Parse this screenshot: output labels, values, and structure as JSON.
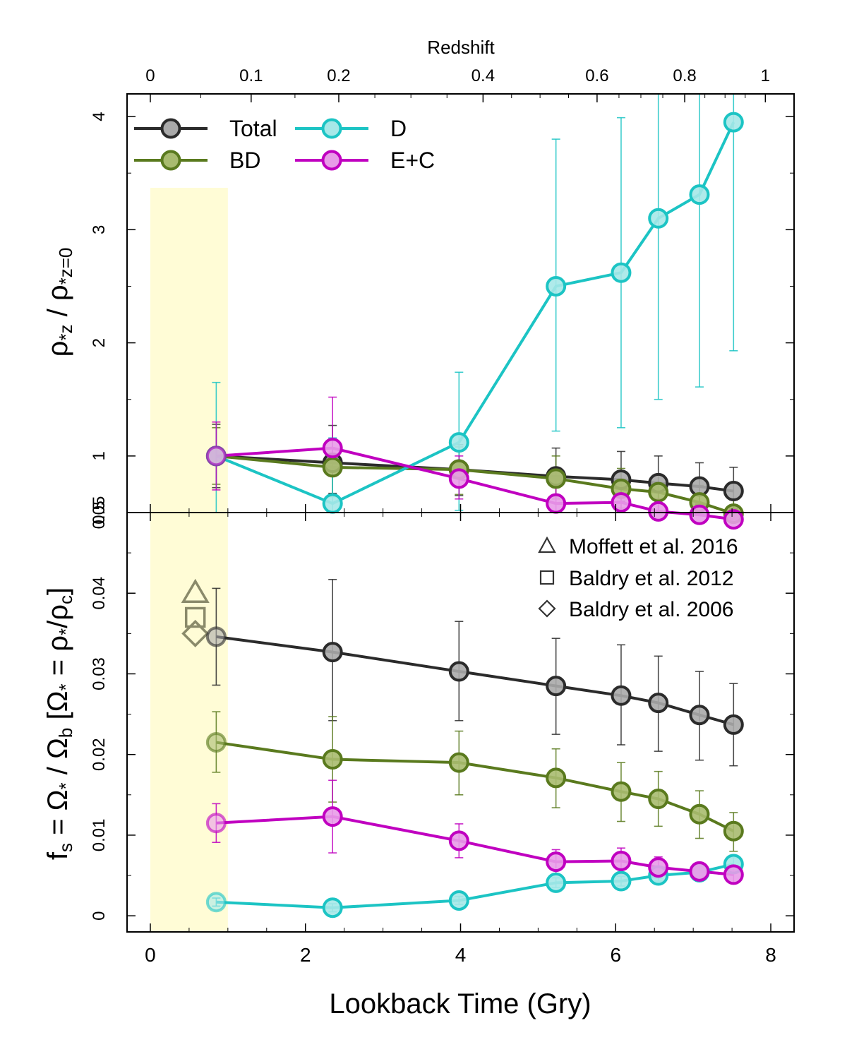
{
  "chart_data": [
    {
      "type": "line",
      "panel": "top",
      "x_axis_top": {
        "title": "Redshift",
        "ticks": [
          0,
          0.1,
          0.2,
          0.4,
          0.6,
          0.8,
          1
        ],
        "tick_labels": [
          "0",
          "0.1",
          "0.2",
          "0.4",
          "0.6",
          "0.8",
          "1"
        ],
        "tick_lookback_gyr": [
          0,
          1.3,
          2.43,
          4.29,
          5.76,
          6.89,
          7.93
        ]
      },
      "ylabel_parts": [
        "ρ",
        "*z",
        " / ρ",
        "*z=0"
      ],
      "ylim": [
        0.5,
        4.2
      ],
      "yticks": [
        0.5,
        1,
        2,
        3,
        4
      ],
      "ytick_labels": [
        "0.5",
        "1",
        "2",
        "3",
        "4"
      ],
      "legend": {
        "position": "top-left",
        "entries": [
          "Total",
          "BD",
          "D",
          "E+C"
        ]
      },
      "x": [
        0.85,
        2.35,
        3.98,
        5.23,
        6.07,
        6.55,
        7.08,
        7.52
      ],
      "series": [
        {
          "name": "Total",
          "color": "#2b2b2b",
          "fill": "#aaaaaa",
          "values": [
            1.0,
            0.94,
            0.88,
            0.82,
            0.79,
            0.76,
            0.73,
            0.69
          ],
          "err_lo": [
            0.28,
            0.27,
            0.23,
            0.18,
            0.19,
            0.18,
            0.16,
            0.15
          ],
          "err_hi": [
            0.28,
            0.33,
            0.22,
            0.25,
            0.25,
            0.24,
            0.21,
            0.21
          ]
        },
        {
          "name": "BD",
          "color": "#5a7a1e",
          "fill": "#a8bb6f",
          "values": [
            1.0,
            0.9,
            0.88,
            0.8,
            0.71,
            0.68,
            0.59,
            0.49
          ],
          "err_lo": [
            0.25,
            0.26,
            0.22,
            0.18,
            0.17,
            0.16,
            0.12,
            0.09
          ],
          "err_hi": [
            0.25,
            0.25,
            0.2,
            0.2,
            0.18,
            0.15,
            0.15,
            0.12
          ]
        },
        {
          "name": "D",
          "color": "#1cc4c4",
          "fill": "#a6e8e8",
          "values": [
            1.0,
            0.58,
            1.12,
            2.5,
            2.62,
            3.1,
            3.31,
            3.95
          ],
          "err_lo": [
            0.63,
            0.58,
            0.6,
            1.28,
            1.37,
            1.6,
            1.7,
            2.02
          ],
          "err_hi": [
            0.65,
            0.58,
            0.62,
            1.3,
            1.37,
            1.6,
            1.7,
            2.02
          ]
        },
        {
          "name": "E+C",
          "color": "#c000c0",
          "fill": "#e89ce8",
          "values": [
            1.0,
            1.07,
            0.8,
            0.58,
            0.59,
            0.51,
            0.48,
            0.44
          ],
          "err_lo": [
            0.3,
            0.25,
            0.18,
            0.13,
            0.14,
            0.12,
            0.1,
            0.09
          ],
          "err_hi": [
            0.3,
            0.45,
            0.2,
            0.14,
            0.14,
            0.11,
            0.1,
            0.09
          ]
        }
      ],
      "shaded_region_x": [
        0,
        1.0
      ]
    },
    {
      "type": "line",
      "panel": "bottom",
      "xlabel": "Lookback Time (Gry)",
      "xlim": [
        -0.3,
        8.3
      ],
      "xticks": [
        0,
        2,
        4,
        6,
        8
      ],
      "xtick_labels": [
        "0",
        "2",
        "4",
        "6",
        "8"
      ],
      "ylabel_parts": [
        "f",
        "s",
        " = Ω",
        "*",
        " / Ω",
        "b",
        " [Ω",
        "*",
        " = ρ",
        "*",
        "/ρ",
        "c",
        "]"
      ],
      "ylim": [
        -0.002,
        0.05
      ],
      "yticks": [
        0,
        0.01,
        0.02,
        0.03,
        0.04,
        0.05
      ],
      "ytick_labels": [
        "0",
        "0.01",
        "0.02",
        "0.03",
        "0.04",
        "0.05"
      ],
      "x": [
        0.85,
        2.35,
        3.98,
        5.23,
        6.07,
        6.55,
        7.08,
        7.52
      ],
      "series": [
        {
          "name": "Total",
          "color": "#2b2b2b",
          "fill": "#aaaaaa",
          "values": [
            0.0346,
            0.0327,
            0.0303,
            0.0285,
            0.0273,
            0.0264,
            0.0249,
            0.0237
          ],
          "err_lo": [
            0.006,
            0.0085,
            0.0061,
            0.006,
            0.0061,
            0.006,
            0.0056,
            0.0051
          ],
          "err_hi": [
            0.006,
            0.009,
            0.0062,
            0.0059,
            0.0063,
            0.0058,
            0.0054,
            0.0051
          ]
        },
        {
          "name": "BD",
          "color": "#5a7a1e",
          "fill": "#a8bb6f",
          "values": [
            0.0215,
            0.0194,
            0.019,
            0.0171,
            0.0154,
            0.0145,
            0.0126,
            0.0105
          ],
          "err_lo": [
            0.0037,
            0.0053,
            0.004,
            0.0037,
            0.0037,
            0.0034,
            0.003,
            0.0025
          ],
          "err_hi": [
            0.0038,
            0.0053,
            0.0039,
            0.0036,
            0.0036,
            0.0034,
            0.0029,
            0.0023
          ]
        },
        {
          "name": "D",
          "color": "#1cc4c4",
          "fill": "#a6e8e8",
          "values": [
            0.0017,
            0.001,
            0.0019,
            0.0041,
            0.0043,
            0.005,
            0.0054,
            0.0064
          ],
          "err_lo": [
            0.0005,
            0.0005,
            0.0005,
            0.0006,
            0.0006,
            0.0007,
            0.0007,
            0.0008
          ],
          "err_hi": [
            0.0005,
            0.0005,
            0.0005,
            0.0006,
            0.0006,
            0.0007,
            0.0007,
            0.0008
          ]
        },
        {
          "name": "E+C",
          "color": "#c000c0",
          "fill": "#e89ce8",
          "values": [
            0.0115,
            0.0123,
            0.0093,
            0.0067,
            0.0068,
            0.006,
            0.0055,
            0.0051
          ],
          "err_lo": [
            0.0024,
            0.0045,
            0.0021,
            0.0015,
            0.0016,
            0.0013,
            0.0011,
            0.001
          ],
          "err_hi": [
            0.0024,
            0.0045,
            0.0021,
            0.0015,
            0.0016,
            0.0013,
            0.0011,
            0.001
          ]
        }
      ],
      "reference_points": [
        {
          "label": "Moffett et al. 2016",
          "marker": "triangle",
          "x": 0.58,
          "y": 0.04
        },
        {
          "label": "Baldry et al. 2012",
          "marker": "square",
          "x": 0.58,
          "y": 0.037
        },
        {
          "label": "Baldry et al. 2006",
          "marker": "diamond",
          "x": 0.58,
          "y": 0.035
        }
      ],
      "reference_color": "#8a8a6a",
      "legend": {
        "position": "top-right"
      },
      "shaded_region_x": [
        0,
        1.0
      ],
      "shaded_color": "#fffcd6"
    }
  ]
}
